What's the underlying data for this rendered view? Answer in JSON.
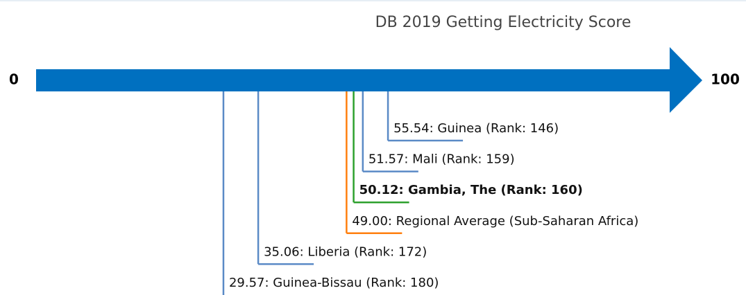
{
  "chart_data": {
    "type": "number-line",
    "title": "DB 2019 Getting Electricity Score",
    "xlim": [
      0,
      100
    ],
    "xticks": [
      0,
      100
    ],
    "axis_color": "#0070c0",
    "values": [
      55.54,
      51.57,
      50.12,
      49.0,
      35.06,
      29.57
    ],
    "value_labels": [
      "55.54: Guinea (Rank: 146)",
      "51.57: Mali (Rank: 159)",
      "50.12: Gambia, The (Rank: 160)",
      "49.00: Regional Average (Sub-Saharan Africa)",
      "35.06: Liberia (Rank: 172)",
      "29.57: Guinea-Bissau (Rank: 180)"
    ],
    "colors": [
      "#5a8ac6",
      "#5a8ac6",
      "#2ca02c",
      "#ff7f0e",
      "#5a8ac6",
      "#5a8ac6"
    ],
    "highlight": 2
  }
}
